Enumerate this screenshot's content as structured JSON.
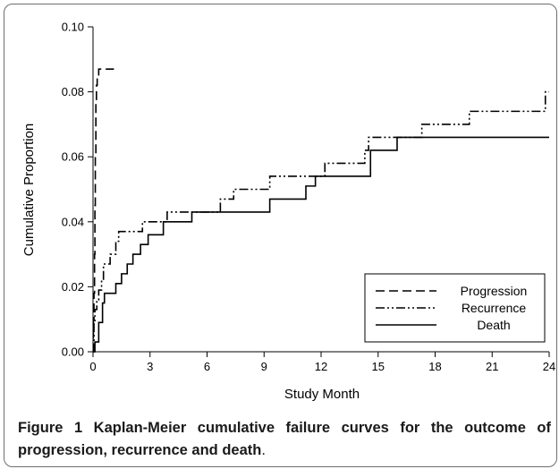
{
  "chart_data": {
    "type": "line",
    "step": true,
    "xlabel": "Study Month",
    "ylabel": "Cumulative Proportion",
    "xlim": [
      0,
      24
    ],
    "ylim": [
      0,
      0.1
    ],
    "xticks": [
      0,
      3,
      6,
      9,
      12,
      15,
      18,
      21,
      24
    ],
    "yticks": [
      0.0,
      0.02,
      0.04,
      0.06,
      0.08,
      0.1
    ],
    "ytick_labels": [
      "0.00",
      "0.02",
      "0.04",
      "0.06",
      "0.08",
      "0.10"
    ],
    "grid": false,
    "legend_position": "bottom-right",
    "series": [
      {
        "name": "Progression",
        "style": "dashed",
        "x": [
          0,
          0.02,
          0.05,
          0.08,
          0.1,
          0.12,
          0.15,
          0.18,
          0.22,
          0.3,
          1.1
        ],
        "y": [
          0,
          0.01,
          0.018,
          0.03,
          0.045,
          0.06,
          0.077,
          0.082,
          0.085,
          0.087,
          0.087
        ]
      },
      {
        "name": "Recurrence",
        "style": "dash-dot-dot",
        "x": [
          0,
          0.05,
          0.1,
          0.2,
          0.3,
          0.45,
          0.55,
          0.9,
          1.2,
          1.35,
          2.6,
          3.9,
          6.7,
          7.4,
          9.3,
          12.2,
          14.3,
          14.5,
          16.0,
          17.3,
          19.8,
          23.8,
          24
        ],
        "y": [
          0,
          0.009,
          0.013,
          0.016,
          0.019,
          0.022,
          0.027,
          0.03,
          0.034,
          0.037,
          0.04,
          0.043,
          0.047,
          0.05,
          0.054,
          0.058,
          0.062,
          0.066,
          0.066,
          0.07,
          0.074,
          0.08,
          0.08
        ]
      },
      {
        "name": "Death",
        "style": "solid",
        "x": [
          0,
          0.1,
          0.3,
          0.5,
          0.6,
          1.2,
          1.5,
          1.8,
          2.1,
          2.5,
          2.9,
          3.7,
          5.2,
          9.3,
          11.2,
          11.7,
          14.6,
          16.0,
          24
        ],
        "y": [
          0,
          0.003,
          0.009,
          0.015,
          0.018,
          0.021,
          0.024,
          0.027,
          0.03,
          0.033,
          0.036,
          0.04,
          0.043,
          0.047,
          0.051,
          0.054,
          0.062,
          0.066,
          0.066
        ]
      }
    ]
  },
  "caption": {
    "figure_label": "Figure 1",
    "title": "Kaplan-Meier cumulative failure curves for the outcome of progression, recurrence and death",
    "end": "."
  }
}
